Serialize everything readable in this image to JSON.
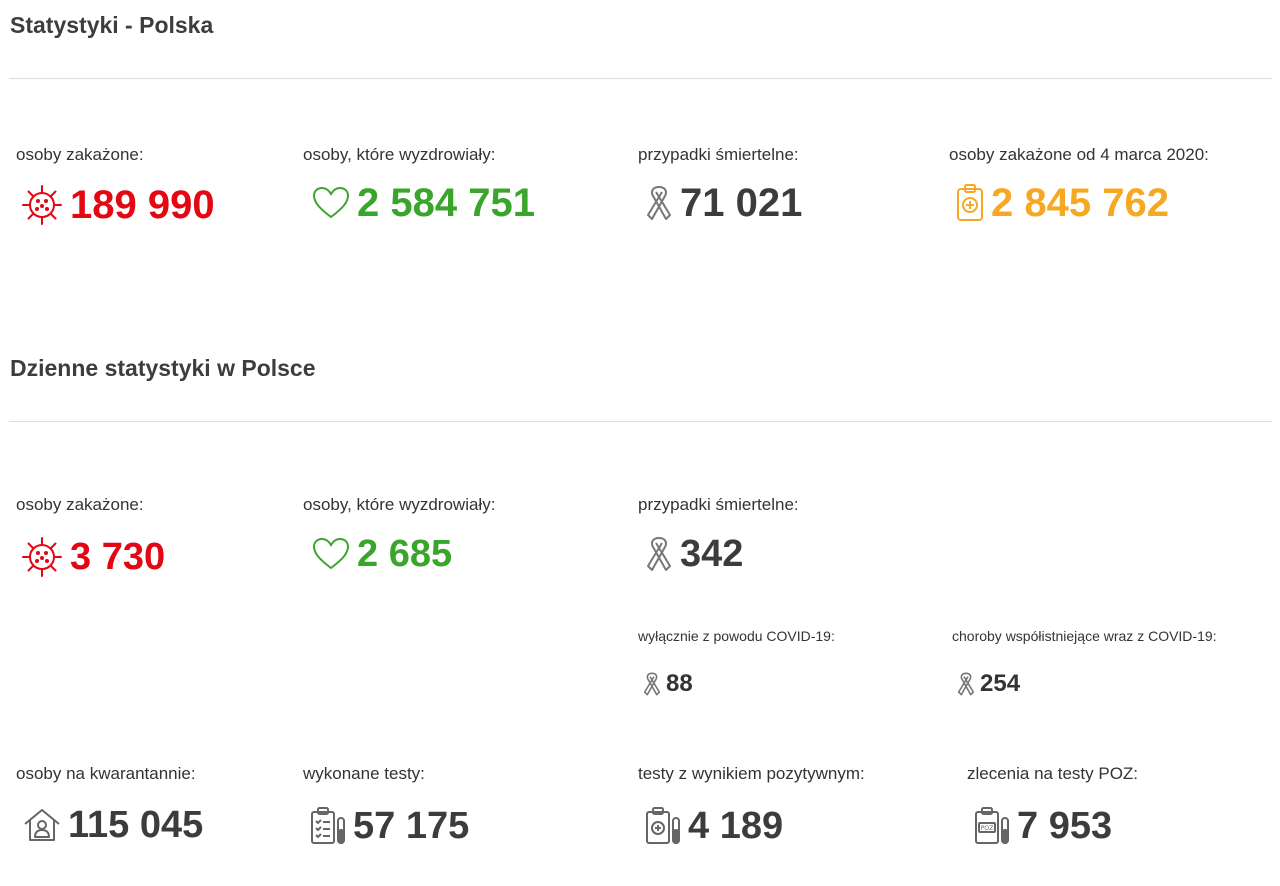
{
  "sections": [
    {
      "title": "Statystyki - Polska"
    },
    {
      "title": "Dzienne statystyki w Polsce"
    }
  ],
  "totals": {
    "infected": {
      "label": "osoby zakażone:",
      "value": "189 990",
      "icon": "virus-icon",
      "color": "#e30613"
    },
    "recovered": {
      "label": "osoby, które wyzdrowiały:",
      "value": "2 584 751",
      "icon": "heart-icon",
      "color": "#3aa52b"
    },
    "deaths": {
      "label": "przypadki śmiertelne:",
      "value": "71 021",
      "icon": "ribbon-icon",
      "color": "#3c3c3c"
    },
    "since_march": {
      "label": "osoby zakażone od 4 marca 2020:",
      "value": "2 845 762",
      "icon": "clipboard-plus-icon",
      "color": "#f7a823"
    }
  },
  "daily": {
    "infected": {
      "label": "osoby zakażone:",
      "value": "3 730",
      "icon": "virus-icon"
    },
    "recovered": {
      "label": "osoby, które wyzdrowiały:",
      "value": "2 685",
      "icon": "heart-icon"
    },
    "deaths": {
      "label": "przypadki śmiertelne:",
      "value": "342",
      "icon": "ribbon-icon"
    },
    "deaths_covid_only": {
      "label": "wyłącznie z powodu COVID-19:",
      "value": "88",
      "icon": "ribbon-icon"
    },
    "deaths_comorbid": {
      "label": "choroby współistniejące wraz z COVID-19:",
      "value": "254",
      "icon": "ribbon-icon"
    },
    "quarantine": {
      "label": "osoby na kwarantannie:",
      "value": "115 045",
      "icon": "house-person-icon"
    },
    "tests": {
      "label": "wykonane testy:",
      "value": "57 175",
      "icon": "test-clipboard-icon"
    },
    "positive_tests": {
      "label": "testy z wynikiem pozytywnym:",
      "value": "4 189",
      "icon": "test-positive-icon"
    },
    "poz_orders": {
      "label": "zlecenia na testy POZ:",
      "value": "7 953",
      "icon": "test-poz-icon"
    }
  }
}
